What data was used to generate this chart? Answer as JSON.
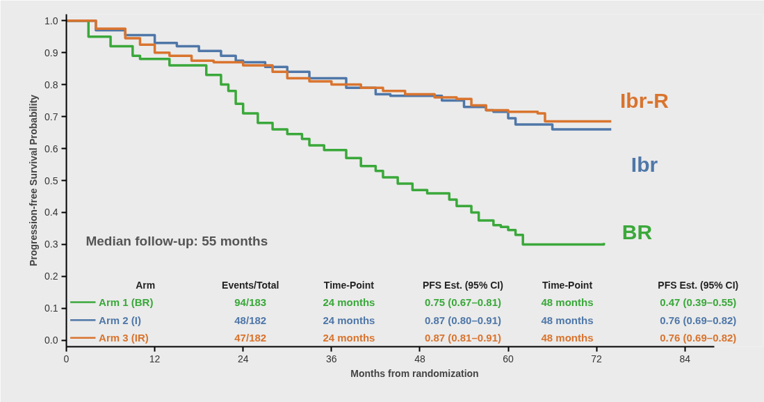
{
  "chart_data": {
    "type": "step",
    "xlabel": "Months from randomization",
    "ylabel": "Progression-free Survival Probability",
    "xlim": [
      0,
      88
    ],
    "ylim": [
      -0.02,
      1.02
    ],
    "xticks": [
      0,
      12,
      24,
      36,
      48,
      60,
      72,
      84
    ],
    "yticks": [
      {
        "value": 0,
        "label": "0.0"
      },
      {
        "value": 0.1,
        "label": "0.1"
      },
      {
        "value": 0.2,
        "label": "0.2"
      },
      {
        "value": 0.3,
        "label": "0.3"
      },
      {
        "value": 0.4,
        "label": "0.4"
      },
      {
        "value": 0.5,
        "label": "0.5"
      },
      {
        "value": 0.6,
        "label": "0.6"
      },
      {
        "value": 0.7,
        "label": "0.7"
      },
      {
        "value": 0.8,
        "label": "0.8"
      },
      {
        "value": 0.9,
        "label": "0.9"
      },
      {
        "value": 1,
        "label": "1.0"
      }
    ],
    "grid": false,
    "legend": "bottom left",
    "line_style": "solid",
    "marker": "none",
    "series": [
      {
        "name": "Arm 1 (BR)",
        "color": "#3aa83a",
        "x": [
          0,
          3,
          6,
          9,
          10,
          13,
          14,
          18,
          19,
          21,
          22,
          23,
          24,
          26,
          28,
          30,
          32,
          33,
          35,
          37,
          38,
          40,
          42,
          43,
          45,
          47,
          49,
          52,
          53,
          55,
          56,
          58,
          59,
          60,
          61,
          62,
          73
        ],
        "values": [
          1.0,
          0.95,
          0.92,
          0.89,
          0.88,
          0.88,
          0.86,
          0.86,
          0.83,
          0.8,
          0.78,
          0.74,
          0.71,
          0.68,
          0.66,
          0.645,
          0.63,
          0.61,
          0.595,
          0.595,
          0.57,
          0.545,
          0.53,
          0.51,
          0.49,
          0.47,
          0.46,
          0.44,
          0.42,
          0.4,
          0.375,
          0.36,
          0.355,
          0.345,
          0.33,
          0.3,
          0.305
        ]
      },
      {
        "name": "Arm 2 (I)",
        "color": "#4f77a8",
        "x": [
          0,
          4,
          8,
          12,
          15,
          18,
          21,
          23,
          24,
          27,
          30,
          33,
          36,
          38,
          42,
          44,
          48,
          51,
          54,
          57,
          58,
          60,
          61,
          65,
          66,
          74
        ],
        "values": [
          1.0,
          0.97,
          0.955,
          0.93,
          0.92,
          0.905,
          0.89,
          0.875,
          0.87,
          0.855,
          0.84,
          0.82,
          0.82,
          0.79,
          0.77,
          0.765,
          0.765,
          0.75,
          0.73,
          0.72,
          0.715,
          0.695,
          0.675,
          0.675,
          0.66,
          0.66
        ]
      },
      {
        "name": "Arm 3  (IR)",
        "color": "#d9742e",
        "x": [
          0,
          4,
          8,
          10,
          12,
          14,
          17,
          20,
          24,
          28,
          30,
          33,
          36,
          40,
          43,
          46,
          50,
          53,
          55,
          57,
          60,
          64,
          65,
          74
        ],
        "values": [
          1.0,
          0.975,
          0.945,
          0.925,
          0.9,
          0.89,
          0.875,
          0.87,
          0.86,
          0.84,
          0.82,
          0.81,
          0.8,
          0.79,
          0.78,
          0.77,
          0.76,
          0.755,
          0.735,
          0.72,
          0.715,
          0.71,
          0.685,
          0.685
        ]
      }
    ],
    "annotations": [
      "Median follow-up: 55 months",
      "Arm",
      "Events/Total",
      "Time-Point",
      "PFS Est. (95% CI)",
      "Time-Point",
      "PFS Est. (95% CI)",
      "94/183",
      "24 months",
      "0.75 (0.67–0.81)",
      "48 months",
      "0.47 (0.39–0.55)",
      "48/182",
      "24 months",
      "0.87 (0.80–0.91)",
      "48 months",
      "0.76 (0.69–0.82)",
      "47/182",
      "24 months",
      "0.87 (0.81–0.91)",
      "48 months",
      "0.76 (0.69–0.82)",
      "BR",
      "Ibr",
      "Ibr-R"
    ]
  }
}
